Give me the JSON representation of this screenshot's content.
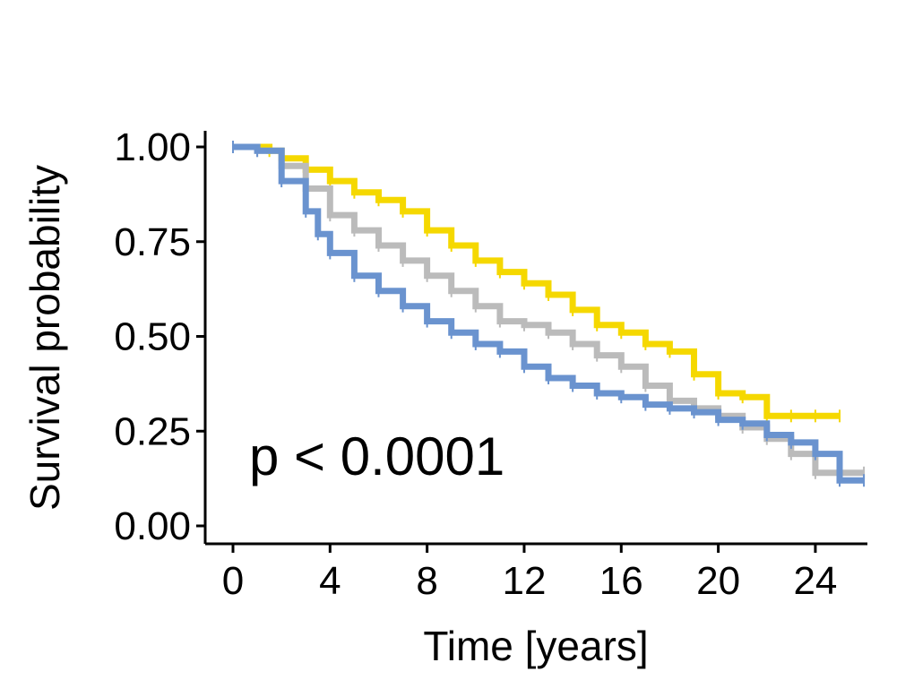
{
  "chart_data": {
    "type": "line",
    "subtype": "kaplan-meier step",
    "xlabel": "Time [years]",
    "ylabel": "Survival probability",
    "xlim": [
      -1,
      26
    ],
    "ylim": [
      -0.05,
      1.05
    ],
    "x_ticks": [
      0,
      4,
      8,
      12,
      16,
      20,
      24
    ],
    "y_ticks": [
      0.0,
      0.25,
      0.5,
      0.75,
      1.0
    ],
    "y_tick_labels": [
      "0.00",
      "0.25",
      "0.50",
      "0.75",
      "1.00"
    ],
    "annotation": "p < 0.0001",
    "grid": false,
    "legend": "none",
    "series": [
      {
        "color": "#F5D800",
        "x": [
          0,
          1.5,
          2,
          3,
          4,
          5,
          6,
          7,
          8,
          9,
          10,
          11,
          12,
          13,
          14,
          15,
          16,
          17,
          18,
          19,
          20,
          21,
          22,
          23,
          24,
          25
        ],
        "y": [
          1.0,
          0.99,
          0.97,
          0.94,
          0.91,
          0.88,
          0.86,
          0.83,
          0.78,
          0.74,
          0.7,
          0.67,
          0.64,
          0.61,
          0.57,
          0.53,
          0.51,
          0.48,
          0.46,
          0.4,
          0.35,
          0.34,
          0.29,
          0.29,
          0.29,
          0.29
        ]
      },
      {
        "color": "#BBBBBB",
        "x": [
          0,
          1,
          2,
          3,
          4,
          5,
          6,
          7,
          8,
          9,
          10,
          11,
          12,
          13,
          14,
          15,
          16,
          17,
          18,
          19,
          20,
          21,
          22,
          23,
          24,
          25,
          26
        ],
        "y": [
          1.0,
          0.99,
          0.95,
          0.89,
          0.82,
          0.78,
          0.74,
          0.7,
          0.66,
          0.62,
          0.58,
          0.54,
          0.53,
          0.51,
          0.48,
          0.45,
          0.42,
          0.37,
          0.33,
          0.31,
          0.29,
          0.26,
          0.23,
          0.19,
          0.14,
          0.14,
          0.14
        ]
      },
      {
        "color": "#6A93CF",
        "x": [
          0,
          1,
          2,
          3,
          3.5,
          4,
          5,
          6,
          7,
          8,
          9,
          10,
          11,
          12,
          13,
          14,
          15,
          16,
          17,
          18,
          19,
          20,
          21,
          22,
          23,
          24,
          25,
          26
        ],
        "y": [
          1.0,
          0.99,
          0.91,
          0.83,
          0.77,
          0.72,
          0.66,
          0.62,
          0.58,
          0.54,
          0.51,
          0.48,
          0.46,
          0.42,
          0.39,
          0.37,
          0.35,
          0.34,
          0.32,
          0.31,
          0.3,
          0.28,
          0.27,
          0.24,
          0.22,
          0.19,
          0.12,
          0.12
        ]
      }
    ]
  }
}
